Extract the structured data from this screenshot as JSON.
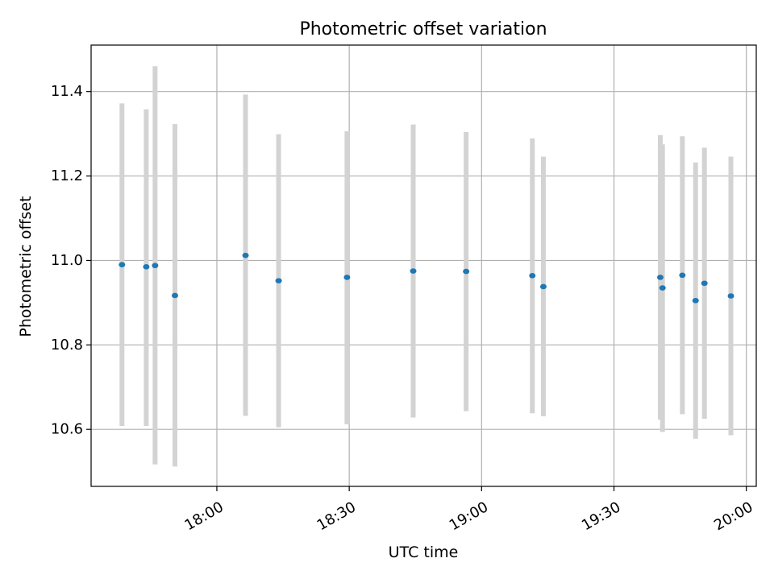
{
  "chart_data": {
    "type": "scatter",
    "title": "Photometric offset variation",
    "xlabel": "UTC time",
    "ylabel": "Photometric offset",
    "xlim": [
      "17:31:30",
      "20:02:15"
    ],
    "ylim": [
      10.465,
      11.51
    ],
    "x_ticks": [
      "18:00",
      "18:30",
      "19:00",
      "19:30",
      "20:00"
    ],
    "y_ticks": [
      "10.6",
      "10.8",
      "11.0",
      "11.2",
      "11.4"
    ],
    "grid": true,
    "colors": {
      "point": "#1f77b4",
      "error_bar": "#d3d3d3",
      "grid": "#b0b0b0"
    },
    "points": [
      {
        "x": "17:38:30",
        "y": 10.99,
        "y_low": 10.608,
        "y_high": 11.372
      },
      {
        "x": "17:44:00",
        "y": 10.985,
        "y_low": 10.608,
        "y_high": 11.358
      },
      {
        "x": "17:46:00",
        "y": 10.988,
        "y_low": 10.517,
        "y_high": 11.46
      },
      {
        "x": "17:50:30",
        "y": 10.917,
        "y_low": 10.512,
        "y_high": 11.323
      },
      {
        "x": "18:06:30",
        "y": 11.012,
        "y_low": 10.632,
        "y_high": 11.393
      },
      {
        "x": "18:14:00",
        "y": 10.952,
        "y_low": 10.605,
        "y_high": 11.299
      },
      {
        "x": "18:29:30",
        "y": 10.96,
        "y_low": 10.612,
        "y_high": 11.306
      },
      {
        "x": "18:44:30",
        "y": 10.975,
        "y_low": 10.628,
        "y_high": 11.322
      },
      {
        "x": "18:56:30",
        "y": 10.974,
        "y_low": 10.643,
        "y_high": 11.304
      },
      {
        "x": "19:11:30",
        "y": 10.964,
        "y_low": 10.638,
        "y_high": 11.289
      },
      {
        "x": "19:14:00",
        "y": 10.938,
        "y_low": 10.631,
        "y_high": 11.246
      },
      {
        "x": "19:40:30",
        "y": 10.96,
        "y_low": 10.623,
        "y_high": 11.297
      },
      {
        "x": "19:41:00",
        "y": 10.935,
        "y_low": 10.594,
        "y_high": 11.275
      },
      {
        "x": "19:45:30",
        "y": 10.965,
        "y_low": 10.636,
        "y_high": 11.294
      },
      {
        "x": "19:48:30",
        "y": 10.905,
        "y_low": 10.578,
        "y_high": 11.232
      },
      {
        "x": "19:50:30",
        "y": 10.946,
        "y_low": 10.625,
        "y_high": 11.267
      },
      {
        "x": "19:56:30",
        "y": 10.916,
        "y_low": 10.586,
        "y_high": 11.246
      }
    ]
  }
}
